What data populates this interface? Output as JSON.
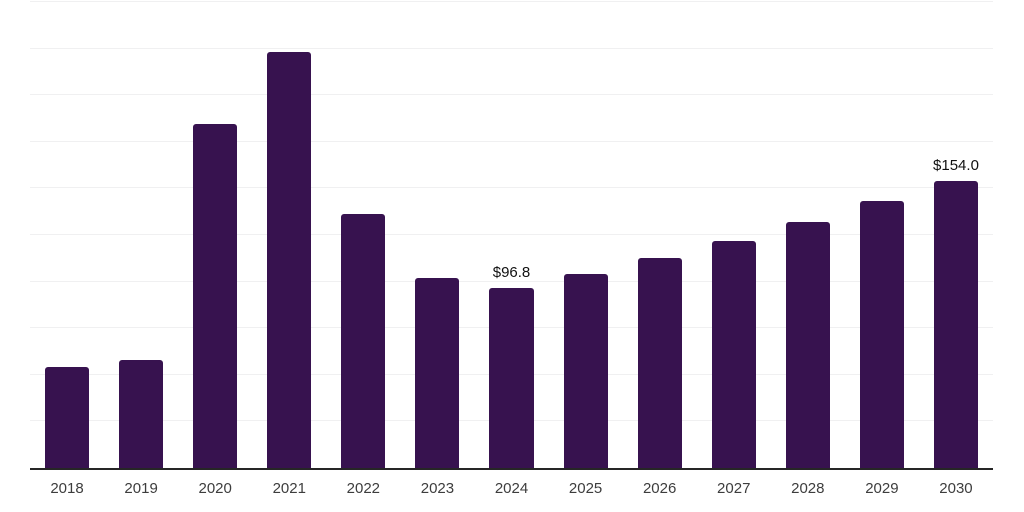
{
  "chart_data": {
    "type": "bar",
    "title": "",
    "xlabel": "",
    "ylabel": "",
    "categories": [
      "2018",
      "2019",
      "2020",
      "2021",
      "2022",
      "2023",
      "2024",
      "2025",
      "2026",
      "2027",
      "2028",
      "2029",
      "2030"
    ],
    "values": [
      54.0,
      58.2,
      184.5,
      223.0,
      136.2,
      102.0,
      96.8,
      104.3,
      112.7,
      121.8,
      131.9,
      143.2,
      154.0
    ],
    "data_labels": [
      null,
      null,
      null,
      null,
      null,
      null,
      "$96.8",
      null,
      null,
      null,
      null,
      null,
      "$154.0"
    ],
    "value_prefix": "$",
    "ylim": [
      0,
      250
    ],
    "gridline_step": 25,
    "grid": true,
    "legend_position": "none",
    "colors": {
      "bar": "#37124f",
      "gridline": "#f0f0f1",
      "axis_line": "#262626",
      "tick_label": "#3d3d3d",
      "value_label": "#111111",
      "background": "#ffffff"
    }
  }
}
